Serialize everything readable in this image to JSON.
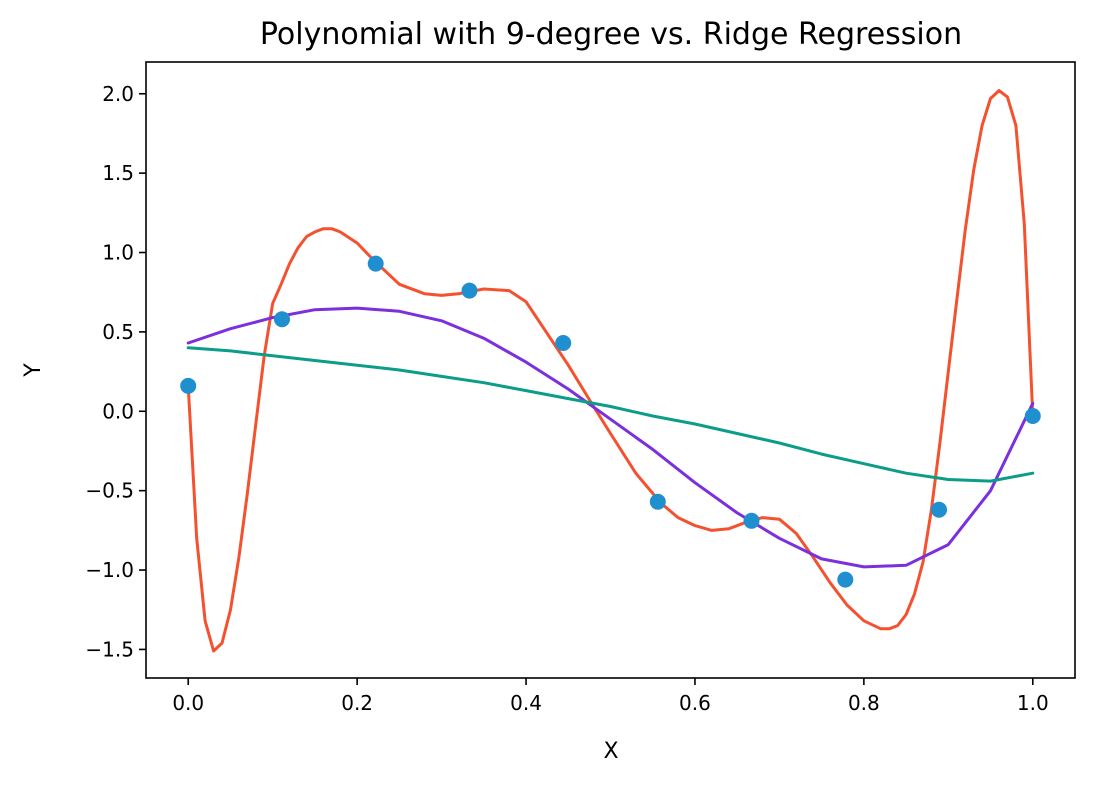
{
  "chart_data": {
    "type": "line",
    "title": "Polynomial with 9-degree vs. Ridge Regression",
    "xlabel": "X",
    "ylabel": "Y",
    "xlim": [
      -0.05,
      1.05
    ],
    "ylim": [
      -1.68,
      2.2
    ],
    "xticks": [
      0.0,
      0.2,
      0.4,
      0.6,
      0.8,
      1.0
    ],
    "xtick_labels": [
      "0.0",
      "0.2",
      "0.4",
      "0.6",
      "0.8",
      "1.0"
    ],
    "yticks": [
      -1.5,
      -1.0,
      -0.5,
      0.0,
      0.5,
      1.0,
      1.5,
      2.0
    ],
    "ytick_labels": [
      "−1.5",
      "−1.0",
      "−0.5",
      "0.0",
      "0.5",
      "1.0",
      "1.5",
      "2.0"
    ],
    "grid": false,
    "scatter": {
      "color": "#1f8fd0",
      "x": [
        0.0,
        0.111,
        0.222,
        0.333,
        0.444,
        0.556,
        0.667,
        0.778,
        0.889,
        1.0
      ],
      "y": [
        0.16,
        0.58,
        0.93,
        0.76,
        0.43,
        -0.57,
        -0.69,
        -1.06,
        -0.62,
        -0.03
      ]
    },
    "series": [
      {
        "color": "#f4512f",
        "x": [
          0.0,
          0.01,
          0.02,
          0.03,
          0.04,
          0.05,
          0.06,
          0.07,
          0.08,
          0.09,
          0.1,
          0.11,
          0.12,
          0.13,
          0.14,
          0.15,
          0.16,
          0.17,
          0.18,
          0.2,
          0.22,
          0.25,
          0.28,
          0.3,
          0.32,
          0.35,
          0.38,
          0.4,
          0.42,
          0.45,
          0.48,
          0.5,
          0.53,
          0.56,
          0.58,
          0.6,
          0.62,
          0.64,
          0.66,
          0.68,
          0.7,
          0.72,
          0.74,
          0.76,
          0.78,
          0.8,
          0.82,
          0.83,
          0.84,
          0.85,
          0.86,
          0.87,
          0.88,
          0.89,
          0.9,
          0.91,
          0.92,
          0.93,
          0.94,
          0.95,
          0.96,
          0.97,
          0.98,
          0.99,
          1.0
        ],
        "y": [
          0.16,
          -0.8,
          -1.32,
          -1.51,
          -1.46,
          -1.25,
          -0.92,
          -0.52,
          -0.08,
          0.35,
          0.68,
          0.8,
          0.93,
          1.03,
          1.1,
          1.13,
          1.15,
          1.15,
          1.13,
          1.06,
          0.95,
          0.8,
          0.74,
          0.73,
          0.74,
          0.77,
          0.76,
          0.69,
          0.53,
          0.29,
          0.03,
          -0.14,
          -0.39,
          -0.58,
          -0.67,
          -0.72,
          -0.75,
          -0.74,
          -0.7,
          -0.67,
          -0.68,
          -0.77,
          -0.92,
          -1.08,
          -1.22,
          -1.32,
          -1.37,
          -1.37,
          -1.35,
          -1.28,
          -1.15,
          -0.95,
          -0.62,
          -0.2,
          0.25,
          0.7,
          1.14,
          1.52,
          1.8,
          1.97,
          2.02,
          1.98,
          1.8,
          1.18,
          -0.03
        ]
      },
      {
        "color": "#7b2fdd",
        "x": [
          0.0,
          0.05,
          0.1,
          0.15,
          0.2,
          0.25,
          0.3,
          0.35,
          0.4,
          0.45,
          0.5,
          0.55,
          0.6,
          0.65,
          0.7,
          0.75,
          0.8,
          0.85,
          0.9,
          0.95,
          1.0
        ],
        "y": [
          0.43,
          0.52,
          0.59,
          0.64,
          0.65,
          0.63,
          0.57,
          0.46,
          0.31,
          0.14,
          -0.05,
          -0.24,
          -0.45,
          -0.64,
          -0.8,
          -0.93,
          -0.98,
          -0.97,
          -0.84,
          -0.5,
          0.05
        ]
      },
      {
        "color": "#0c9c8a",
        "x": [
          0.0,
          0.05,
          0.1,
          0.15,
          0.2,
          0.25,
          0.3,
          0.35,
          0.4,
          0.45,
          0.5,
          0.55,
          0.6,
          0.65,
          0.7,
          0.75,
          0.8,
          0.85,
          0.9,
          0.95,
          1.0
        ],
        "y": [
          0.4,
          0.38,
          0.35,
          0.32,
          0.29,
          0.26,
          0.22,
          0.18,
          0.13,
          0.08,
          0.03,
          -0.03,
          -0.08,
          -0.14,
          -0.2,
          -0.27,
          -0.33,
          -0.39,
          -0.43,
          -0.44,
          -0.39
        ]
      }
    ]
  }
}
